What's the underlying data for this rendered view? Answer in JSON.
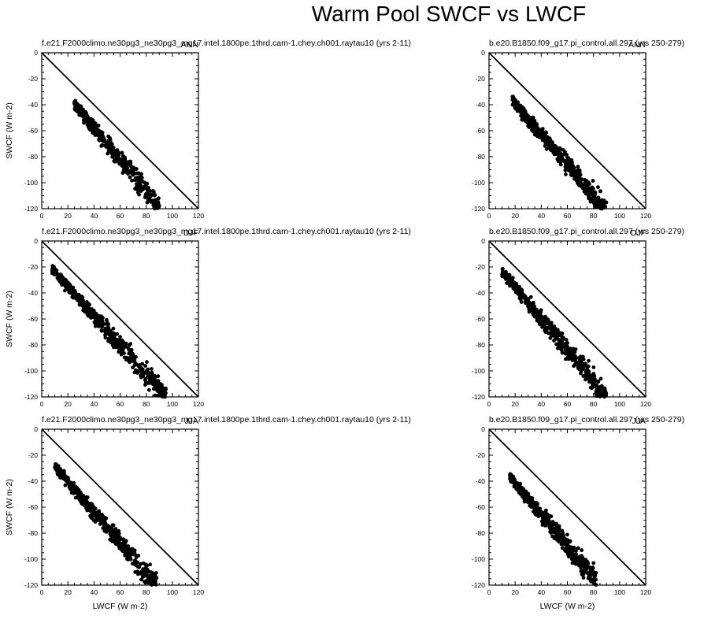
{
  "figure": {
    "title": "Warm Pool SWCF vs LWCF"
  },
  "chart_data": [
    {
      "type": "scatter",
      "panel": "left-row1",
      "title": "f.e21.F2000climo.ne30pg3_ne30pg3_mg17.intel.1800pe.1thrd.cam-1.chey.ch001.raytau10 (yrs 2-11)",
      "season": "ANN",
      "xlabel": "",
      "ylabel": "SWCF (W m-2)",
      "xlim": [
        0,
        120
      ],
      "ylim": [
        -120,
        0
      ],
      "reference_line": [
        [
          0,
          0
        ],
        [
          120,
          -120
        ]
      ],
      "cloud": {
        "x_range": [
          25,
          90
        ],
        "swcf_high": -38,
        "swcf_low": -118
      }
    },
    {
      "type": "scatter",
      "panel": "right-row1",
      "title": "b.e20.B1850.f09_g17.pi_control.all.297 (yrs 250-279)",
      "season": "ANN",
      "xlabel": "",
      "ylabel": "",
      "xlim": [
        0,
        120
      ],
      "ylim": [
        -120,
        0
      ],
      "reference_line": [
        [
          0,
          0
        ],
        [
          120,
          -120
        ]
      ],
      "cloud": {
        "x_range": [
          18,
          90
        ],
        "swcf_high": -35,
        "swcf_low": -120
      }
    },
    {
      "type": "scatter",
      "panel": "left-row2",
      "title": "f.e21.F2000climo.ne30pg3_ne30pg3_mg17.intel.1800pe.1thrd.cam-1.chey.ch001.raytau10 (yrs 2-11)",
      "season": "DJF",
      "xlabel": "",
      "ylabel": "SWCF (W m-2)",
      "xlim": [
        0,
        120
      ],
      "ylim": [
        -120,
        0
      ],
      "reference_line": [
        [
          0,
          0
        ],
        [
          120,
          -120
        ]
      ],
      "cloud": {
        "x_range": [
          8,
          95
        ],
        "swcf_high": -20,
        "swcf_low": -118
      }
    },
    {
      "type": "scatter",
      "panel": "right-row2",
      "title": "b.e20.B1850.f09_g17.pi_control.all.297 (yrs 250-279)",
      "season": "DJF",
      "xlabel": "",
      "ylabel": "",
      "xlim": [
        0,
        120
      ],
      "ylim": [
        -120,
        0
      ],
      "reference_line": [
        [
          0,
          0
        ],
        [
          120,
          -120
        ]
      ],
      "cloud": {
        "x_range": [
          10,
          90
        ],
        "swcf_high": -22,
        "swcf_low": -118
      }
    },
    {
      "type": "scatter",
      "panel": "left-row3",
      "title": "f.e21.F2000climo.ne30pg3_ne30pg3_mg17.intel.1800pe.1thrd.cam-1.chey.ch001.raytau10 (yrs 2-11)",
      "season": "JJA",
      "xlabel": "LWCF (W m-2)",
      "ylabel": "SWCF (W m-2)",
      "xlim": [
        0,
        120
      ],
      "ylim": [
        -120,
        0
      ],
      "reference_line": [
        [
          0,
          0
        ],
        [
          120,
          -120
        ]
      ],
      "cloud": {
        "x_range": [
          10,
          88
        ],
        "swcf_high": -27,
        "swcf_low": -118
      }
    },
    {
      "type": "scatter",
      "panel": "right-row3",
      "title": "b.e20.B1850.f09_g17.pi_control.all.297 (yrs 250-279)",
      "season": "JJA",
      "xlabel": "LWCF (W m-2)",
      "ylabel": "",
      "xlim": [
        0,
        120
      ],
      "ylim": [
        -120,
        0
      ],
      "reference_line": [
        [
          0,
          0
        ],
        [
          120,
          -120
        ]
      ],
      "cloud": {
        "x_range": [
          16,
          82
        ],
        "swcf_high": -35,
        "swcf_low": -115
      }
    }
  ],
  "ticks": {
    "x": [
      "0",
      "20",
      "40",
      "60",
      "80",
      "100",
      "120"
    ],
    "y": [
      "0",
      "-20",
      "-40",
      "-60",
      "-80",
      "-100",
      "-120"
    ]
  }
}
